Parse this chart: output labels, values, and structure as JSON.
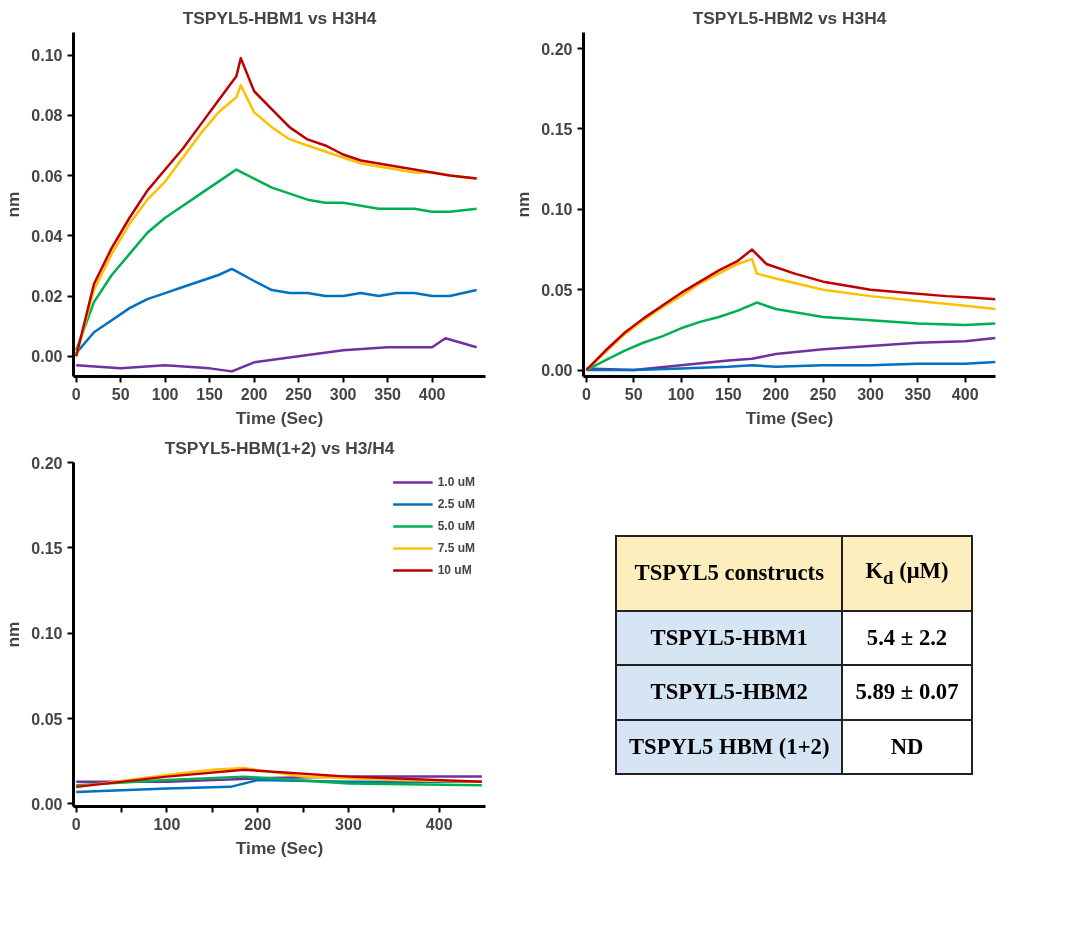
{
  "chart_data": [
    {
      "type": "line",
      "title": "TSPYL5-HBM1 vs H3H4",
      "xlabel": "Time (Sec)",
      "ylabel": "nm",
      "xlim": [
        -3,
        460
      ],
      "ylim": [
        -0.0067,
        0.1075
      ],
      "xticks": [
        0,
        50,
        100,
        150,
        200,
        250,
        300,
        350,
        400
      ],
      "yticks": [
        {
          "value": 0,
          "label": "0.00"
        },
        {
          "value": 0.02,
          "label": "0.02"
        },
        {
          "value": 0.04,
          "label": "0.04"
        },
        {
          "value": 0.06,
          "label": "0.06"
        },
        {
          "value": 0.08,
          "label": "0.08"
        },
        {
          "value": 0.1,
          "label": "0.10"
        }
      ],
      "series": [
        {
          "color": "#7030a0",
          "x": [
            0,
            50,
            100,
            150,
            175,
            200,
            250,
            275,
            300,
            350,
            400,
            415,
            450
          ],
          "values": [
            -0.003,
            -0.004,
            -0.003,
            -0.004,
            -0.005,
            -0.002,
            0.0,
            0.001,
            0.002,
            0.003,
            0.003,
            0.006,
            0.003
          ]
        },
        {
          "color": "#0070c0",
          "x": [
            0,
            20,
            40,
            60,
            80,
            100,
            120,
            140,
            160,
            175,
            200,
            220,
            240,
            260,
            280,
            300,
            320,
            340,
            360,
            380,
            400,
            420,
            450
          ],
          "values": [
            0.001,
            0.008,
            0.012,
            0.016,
            0.019,
            0.021,
            0.023,
            0.025,
            0.027,
            0.029,
            0.025,
            0.022,
            0.021,
            0.021,
            0.02,
            0.02,
            0.021,
            0.02,
            0.021,
            0.021,
            0.02,
            0.02,
            0.022
          ]
        },
        {
          "color": "#00b050",
          "x": [
            0,
            20,
            40,
            60,
            80,
            100,
            120,
            140,
            160,
            180,
            200,
            220,
            240,
            260,
            280,
            300,
            320,
            340,
            360,
            380,
            400,
            420,
            450
          ],
          "values": [
            0.002,
            0.018,
            0.027,
            0.034,
            0.041,
            0.046,
            0.05,
            0.054,
            0.058,
            0.062,
            0.059,
            0.056,
            0.054,
            0.052,
            0.051,
            0.051,
            0.05,
            0.049,
            0.049,
            0.049,
            0.048,
            0.048,
            0.049
          ]
        },
        {
          "color": "#ffc000",
          "x": [
            0,
            20,
            40,
            60,
            80,
            100,
            120,
            140,
            160,
            180,
            185,
            200,
            220,
            240,
            260,
            280,
            300,
            320,
            340,
            360,
            380,
            400,
            420,
            450
          ],
          "values": [
            0.0,
            0.022,
            0.034,
            0.044,
            0.052,
            0.058,
            0.066,
            0.074,
            0.081,
            0.086,
            0.09,
            0.081,
            0.076,
            0.072,
            0.07,
            0.068,
            0.066,
            0.064,
            0.063,
            0.062,
            0.061,
            0.061,
            0.06,
            0.059
          ]
        },
        {
          "color": "#c00000",
          "x": [
            0,
            20,
            40,
            60,
            80,
            100,
            120,
            140,
            160,
            180,
            185,
            200,
            220,
            240,
            260,
            280,
            300,
            320,
            340,
            360,
            380,
            400,
            420,
            450
          ],
          "values": [
            0.0,
            0.024,
            0.036,
            0.046,
            0.055,
            0.062,
            0.069,
            0.077,
            0.085,
            0.093,
            0.099,
            0.088,
            0.082,
            0.076,
            0.072,
            0.07,
            0.067,
            0.065,
            0.064,
            0.063,
            0.062,
            0.061,
            0.06,
            0.059
          ]
        }
      ]
    },
    {
      "type": "line",
      "title": "TSPYL5-HBM2 vs H3H4",
      "xlabel": "Time (Sec)",
      "ylabel": "nm",
      "xlim": [
        -3,
        432
      ],
      "ylim": [
        -0.004,
        0.21
      ],
      "xticks": [
        0,
        50,
        100,
        150,
        200,
        250,
        300,
        350,
        400
      ],
      "yticks": [
        {
          "value": 0,
          "label": "0.00"
        },
        {
          "value": 0.05,
          "label": "0.05"
        },
        {
          "value": 0.1,
          "label": "0.10"
        },
        {
          "value": 0.15,
          "label": "0.15"
        },
        {
          "value": 0.2,
          "label": "0.20"
        }
      ],
      "series": [
        {
          "color": "#7030a0",
          "x": [
            0,
            50,
            100,
            150,
            175,
            200,
            250,
            300,
            350,
            400,
            432
          ],
          "values": [
            0.001,
            0.0,
            0.003,
            0.006,
            0.007,
            0.01,
            0.013,
            0.015,
            0.017,
            0.018,
            0.02
          ]
        },
        {
          "color": "#0070c0",
          "x": [
            0,
            50,
            100,
            150,
            175,
            200,
            250,
            300,
            350,
            400,
            432
          ],
          "values": [
            0.0,
            0.0,
            0.001,
            0.002,
            0.003,
            0.002,
            0.003,
            0.003,
            0.004,
            0.004,
            0.005
          ]
        },
        {
          "color": "#00b050",
          "x": [
            0,
            20,
            40,
            60,
            80,
            100,
            120,
            140,
            160,
            180,
            200,
            250,
            300,
            350,
            400,
            432
          ],
          "values": [
            0.0,
            0.006,
            0.012,
            0.017,
            0.021,
            0.026,
            0.03,
            0.033,
            0.037,
            0.042,
            0.038,
            0.033,
            0.031,
            0.029,
            0.028,
            0.029
          ]
        },
        {
          "color": "#ffc000",
          "x": [
            0,
            20,
            40,
            60,
            80,
            100,
            120,
            140,
            160,
            175,
            180,
            200,
            250,
            300,
            350,
            400,
            432
          ],
          "values": [
            0.0,
            0.011,
            0.022,
            0.031,
            0.039,
            0.046,
            0.054,
            0.06,
            0.066,
            0.069,
            0.06,
            0.057,
            0.05,
            0.046,
            0.043,
            0.04,
            0.038
          ]
        },
        {
          "color": "#c00000",
          "x": [
            0,
            20,
            40,
            60,
            80,
            100,
            120,
            140,
            160,
            175,
            190,
            220,
            250,
            280,
            300,
            340,
            380,
            410,
            432
          ],
          "values": [
            0.0,
            0.012,
            0.023,
            0.032,
            0.04,
            0.048,
            0.055,
            0.062,
            0.068,
            0.075,
            0.066,
            0.06,
            0.055,
            0.052,
            0.05,
            0.048,
            0.046,
            0.045,
            0.044
          ]
        }
      ]
    },
    {
      "type": "line",
      "title": "TSPYL5-HBM(1+2) vs H3/H4",
      "xlabel": "Time (Sec)",
      "ylabel": "nm",
      "xlim": [
        -3,
        451
      ],
      "ylim": [
        -0.0015,
        0.2
      ],
      "xticks": [
        0,
        {
          "value": 50,
          "label": null
        },
        100,
        {
          "value": 150,
          "label": null
        },
        200,
        {
          "value": 250,
          "label": null
        },
        300,
        {
          "value": 350,
          "label": null
        },
        400
      ],
      "yticks": [
        {
          "value": 0,
          "label": "0.00"
        },
        {
          "value": 0.05,
          "label": "0.05"
        },
        {
          "value": 0.1,
          "label": "0.10"
        },
        {
          "value": 0.15,
          "label": "0.15"
        },
        {
          "value": 0.2,
          "label": "0.20"
        }
      ],
      "legend": "top right",
      "series": [
        {
          "name": "1.0 uM",
          "color": "#7030a0",
          "x": [
            0,
            100,
            200,
            300,
            447
          ],
          "values": [
            0.013,
            0.013,
            0.015,
            0.016,
            0.016
          ]
        },
        {
          "name": "2.5 uM",
          "color": "#0070c0",
          "x": [
            0,
            100,
            170,
            200,
            300,
            447
          ],
          "values": [
            0.007,
            0.009,
            0.01,
            0.014,
            0.013,
            0.013
          ]
        },
        {
          "name": "5.0 uM",
          "color": "#00b050",
          "x": [
            0,
            100,
            185,
            300,
            447
          ],
          "values": [
            0.011,
            0.014,
            0.016,
            0.012,
            0.011
          ]
        },
        {
          "name": "7.5 uM",
          "color": "#ffc000",
          "x": [
            0,
            100,
            150,
            185,
            250,
            350,
            447
          ],
          "values": [
            0.01,
            0.017,
            0.02,
            0.021,
            0.016,
            0.014,
            0.013
          ]
        },
        {
          "name": "10 uM",
          "color": "#c00000",
          "x": [
            0,
            100,
            185,
            300,
            447
          ],
          "values": [
            0.01,
            0.016,
            0.02,
            0.016,
            0.013
          ]
        }
      ]
    },
    {
      "type": "other",
      "annotations": [
        "TSPYL5 constructs",
        "K$_{d}$ (μM)",
        "TSPYL5-HBM1",
        "5.4 ± 2.2",
        "TSPYL5-HBM2",
        "5.89 ± 0.07",
        "TSPYL5 HBM (1+2)",
        "ND"
      ]
    }
  ]
}
